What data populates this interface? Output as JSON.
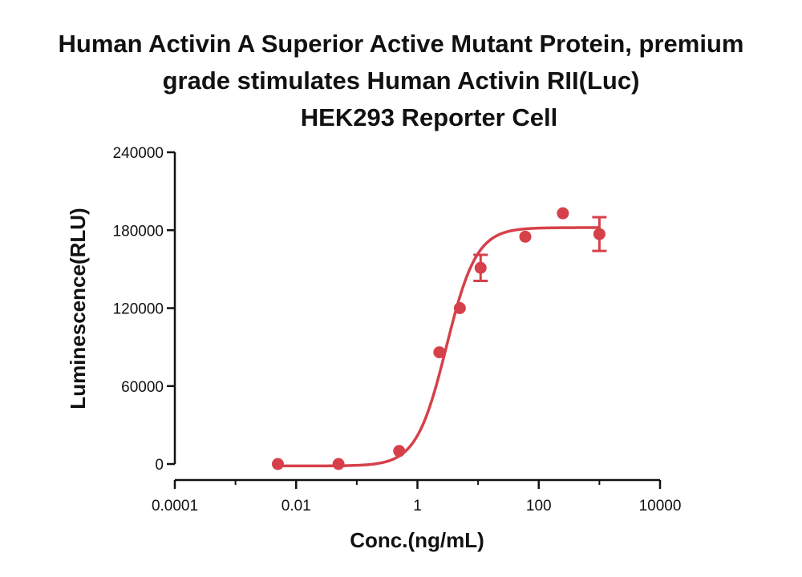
{
  "chart_data": {
    "type": "scatter",
    "title_lines": [
      "Human Activin A Superior Active Mutant Protein, premium",
      "grade stimulates Human Activin RII(Luc)",
      "HEK293 Reporter Cell"
    ],
    "xlabel": "Conc.(ng/mL)",
    "ylabel": "Luminescence(RLU)",
    "x_scale": "log",
    "xlim": [
      0.0001,
      10000
    ],
    "ylim": [
      0,
      240000
    ],
    "x_ticks": [
      0.0001,
      0.01,
      1,
      100,
      10000
    ],
    "x_tick_labels": [
      "0.0001",
      "0.01",
      "1",
      "100",
      "10000"
    ],
    "y_ticks": [
      0,
      60000,
      120000,
      180000,
      240000
    ],
    "y_tick_labels": [
      "0",
      "60000",
      "120000",
      "180000",
      "240000"
    ],
    "grid": false,
    "color": "#d6404a",
    "series": [
      {
        "points": [
          {
            "x": 0.005,
            "y": 0
          },
          {
            "x": 0.05,
            "y": 0
          },
          {
            "x": 0.5,
            "y": 10000
          },
          {
            "x": 2.3,
            "y": 86000
          },
          {
            "x": 5.0,
            "y": 120000
          },
          {
            "x": 11.0,
            "y": 151000,
            "err": 10000
          },
          {
            "x": 60.0,
            "y": 175000
          },
          {
            "x": 250.0,
            "y": 193000
          },
          {
            "x": 1000.0,
            "y": 177000,
            "err": 13000
          }
        ],
        "fit": {
          "type": "4PL",
          "bottom": -1500,
          "top": 182000,
          "ec50": 3.0,
          "hill": 1.75
        }
      }
    ]
  }
}
